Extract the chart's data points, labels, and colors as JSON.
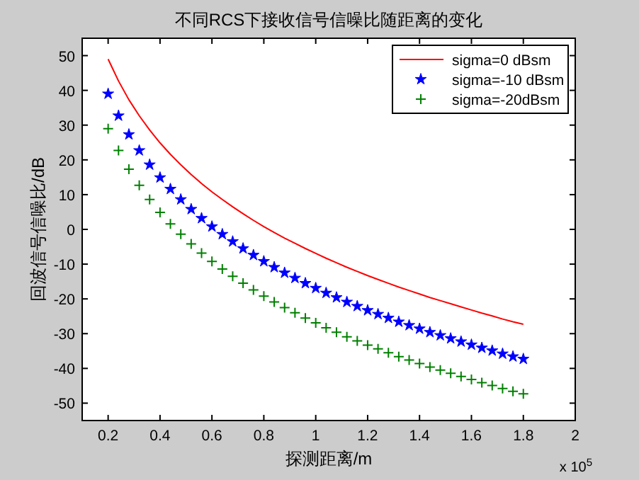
{
  "chart_data": {
    "type": "line",
    "title": "不同RCS下接收信号信噪比随距离的变化",
    "xlabel": "探测距离/m",
    "ylabel": "回波信号信噪比/dB",
    "annotations": [
      "x 10$^{5}$"
    ],
    "x": [
      0.2,
      0.24,
      0.28,
      0.32,
      0.36,
      0.4,
      0.44,
      0.48,
      0.52,
      0.56,
      0.6,
      0.64,
      0.68,
      0.72,
      0.76,
      0.8,
      0.84,
      0.88,
      0.92,
      0.96,
      1.0,
      1.04,
      1.08,
      1.12,
      1.16,
      1.2,
      1.24,
      1.28,
      1.32,
      1.36,
      1.4,
      1.44,
      1.48,
      1.52,
      1.56,
      1.6,
      1.64,
      1.68,
      1.72,
      1.76,
      1.8
    ],
    "series": [
      {
        "name": "sigma=0 dBsm",
        "color": "#ff0000",
        "line_style": "solid",
        "marker": "none",
        "values": [
          49,
          42.7,
          37.3,
          32.7,
          28.6,
          24.9,
          21.6,
          18.6,
          15.8,
          13.2,
          10.8,
          8.6,
          6.5,
          4.5,
          2.6,
          0.8,
          -0.9,
          -2.5,
          -4.0,
          -5.5,
          -6.9,
          -8.3,
          -9.6,
          -10.9,
          -12.1,
          -13.3,
          -14.4,
          -15.5,
          -16.6,
          -17.6,
          -18.6,
          -19.6,
          -20.5,
          -21.4,
          -22.3,
          -23.2,
          -24.1,
          -24.9,
          -25.8,
          -26.6,
          -27.3
        ]
      },
      {
        "name": "sigma=-10 dBsm",
        "type": "scatter",
        "color": "#0000ff",
        "marker": "star",
        "values": [
          39,
          32.7,
          27.3,
          22.7,
          18.6,
          14.9,
          11.6,
          8.6,
          5.8,
          3.2,
          0.8,
          -1.4,
          -3.5,
          -5.5,
          -7.4,
          -9.2,
          -10.9,
          -12.5,
          -14.0,
          -15.5,
          -16.9,
          -18.3,
          -19.6,
          -20.9,
          -22.1,
          -23.3,
          -24.4,
          -25.5,
          -26.6,
          -27.6,
          -28.6,
          -29.6,
          -30.5,
          -31.4,
          -32.3,
          -33.2,
          -34.1,
          -34.9,
          -35.8,
          -36.6,
          -37.3
        ]
      },
      {
        "name": "sigma=-20dBsm",
        "type": "scatter",
        "color": "#008000",
        "marker": "cross",
        "values": [
          29,
          22.7,
          17.3,
          12.7,
          8.6,
          4.9,
          1.6,
          -1.4,
          -4.2,
          -6.8,
          -9.2,
          -11.4,
          -13.5,
          -15.5,
          -17.4,
          -19.2,
          -20.9,
          -22.5,
          -24.0,
          -25.5,
          -26.9,
          -28.3,
          -29.6,
          -30.9,
          -32.1,
          -33.3,
          -34.4,
          -35.5,
          -36.6,
          -37.6,
          -38.6,
          -39.6,
          -40.5,
          -41.4,
          -42.3,
          -43.2,
          -44.1,
          -44.9,
          -45.8,
          -46.6,
          -47.3
        ]
      }
    ],
    "xlim": [
      0.1,
      2
    ],
    "xticks": [
      0.2,
      0.4,
      0.6,
      0.8,
      1,
      1.2,
      1.4,
      1.6,
      1.8,
      2
    ],
    "ylim": [
      -55,
      55
    ],
    "yticks": [
      -50,
      -40,
      -30,
      -20,
      -10,
      0,
      10,
      20,
      30,
      40,
      50
    ],
    "grid": false,
    "legend": "top right"
  }
}
